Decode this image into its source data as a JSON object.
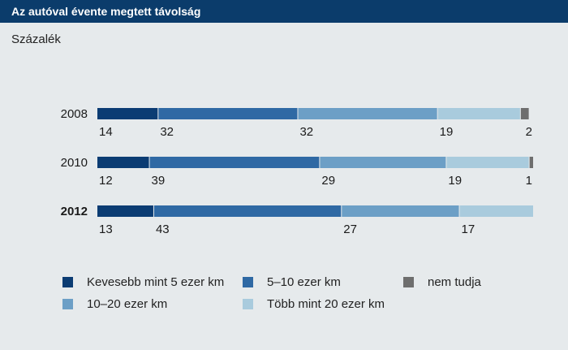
{
  "chart_data": {
    "type": "bar",
    "orientation": "horizontal",
    "stacked": true,
    "title": "Az autóval évente megtett távolság",
    "unit_label": "Százalék",
    "categories": [
      "2008",
      "2010",
      "2012"
    ],
    "bold_category": "2012",
    "xlim": [
      0,
      100
    ],
    "series": [
      {
        "name": "Kevesebb mint 5 ezer km",
        "color": "#0b3c73",
        "values": [
          14,
          12,
          13
        ]
      },
      {
        "name": "5–10 ezer km",
        "color": "#2f69a4",
        "values": [
          32,
          39,
          43
        ]
      },
      {
        "name": "10–20 ezer km",
        "color": "#6c9fc6",
        "values": [
          32,
          29,
          27
        ]
      },
      {
        "name": "Több mint 20 ezer km",
        "color": "#a9cbdd",
        "values": [
          19,
          19,
          17
        ]
      },
      {
        "name": "nem tudja",
        "color": "#6e6e6e",
        "values": [
          2,
          1,
          0
        ]
      }
    ],
    "data_labels": [
      [
        "14",
        "32",
        "32",
        "19",
        "2"
      ],
      [
        "12",
        "39",
        "29",
        "19",
        "1"
      ],
      [
        "13",
        "43",
        "27",
        "17",
        ""
      ]
    ],
    "legend_order": [
      0,
      1,
      4,
      2,
      3
    ],
    "legend_placement": "bottom",
    "grid": false
  }
}
